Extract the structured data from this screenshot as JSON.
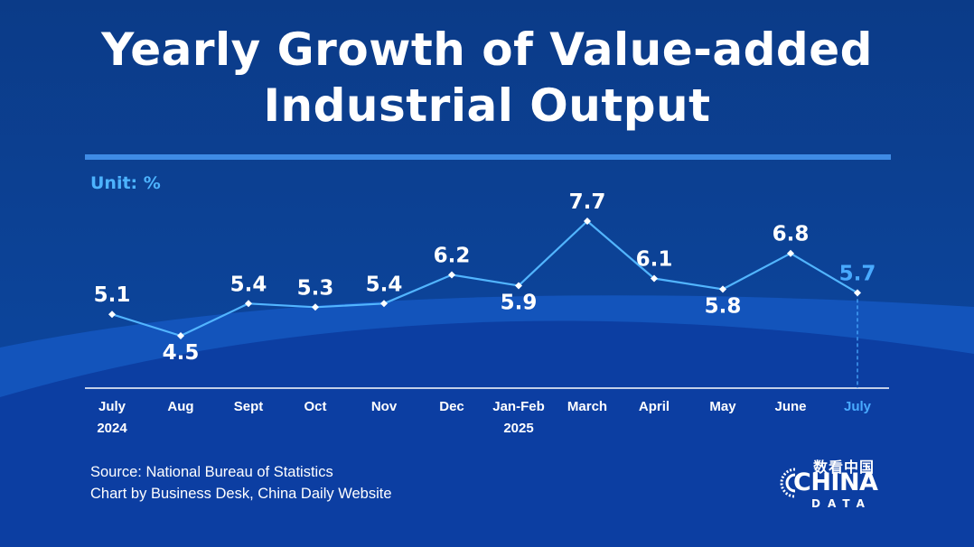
{
  "title_lines": [
    "Yearly Growth of Value-added",
    "Industrial Output"
  ],
  "unit_label": "Unit: %",
  "source_lines": [
    "Source: National Bureau of Statistics",
    "Chart by Business Desk, China Daily Website"
  ],
  "logo": {
    "cn": "数看中国",
    "word": "CHINA",
    "sub": "DATA"
  },
  "colors": {
    "background": "#0a3d8a",
    "line": "#52b5ff",
    "highlight": "#49aaff",
    "label": "#ffffff",
    "rule": "#3f8be5"
  },
  "chart_data": {
    "type": "line",
    "title": "Yearly Growth of Value-added Industrial Output",
    "ylabel": "Unit: %",
    "categories": [
      [
        "July",
        "2024"
      ],
      [
        "Aug"
      ],
      [
        "Sept"
      ],
      [
        "Oct"
      ],
      [
        "Nov"
      ],
      [
        "Dec"
      ],
      [
        "Jan-Feb",
        "2025"
      ],
      [
        "March"
      ],
      [
        "April"
      ],
      [
        "May"
      ],
      [
        "June"
      ],
      [
        "July"
      ]
    ],
    "values": [
      5.1,
      4.5,
      5.4,
      5.3,
      5.4,
      6.2,
      5.9,
      7.7,
      6.1,
      5.8,
      6.8,
      5.7
    ],
    "highlight_index": 11,
    "label_position": [
      "above",
      "below",
      "above",
      "above",
      "above",
      "above",
      "below",
      "above",
      "above",
      "below",
      "above",
      "above"
    ],
    "ylim": [
      4.5,
      7.7
    ],
    "grid": false,
    "legend": "none"
  }
}
